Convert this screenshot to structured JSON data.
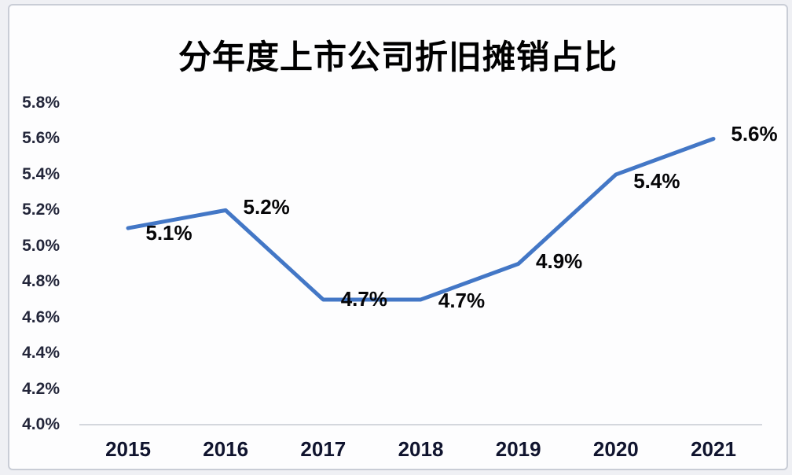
{
  "title": "分年度上市公司折旧摊销占比",
  "colors": {
    "line": "#4377c6",
    "axis_line": "#d4d7dd",
    "frame_border": "#c9cdd6",
    "data_label": "#060608",
    "tick_label": "#23263a"
  },
  "chart_data": {
    "type": "line",
    "title": "分年度上市公司折旧摊销占比",
    "categories": [
      "2015",
      "2016",
      "2017",
      "2018",
      "2019",
      "2020",
      "2021"
    ],
    "values": [
      5.1,
      5.2,
      4.7,
      4.7,
      4.9,
      5.4,
      5.6
    ],
    "data_labels": [
      "5.1%",
      "5.2%",
      "4.7%",
      "4.7%",
      "4.9%",
      "5.4%",
      "5.6%"
    ],
    "y_ticks": [
      "5.8%",
      "5.6%",
      "5.4%",
      "5.2%",
      "5.0%",
      "4.8%",
      "4.6%",
      "4.4%",
      "4.2%",
      "4.0%"
    ],
    "xlabel": "",
    "ylabel": "",
    "ylim": [
      4.0,
      5.8
    ],
    "y_step": 0.2,
    "grid": false,
    "legend": "none"
  }
}
